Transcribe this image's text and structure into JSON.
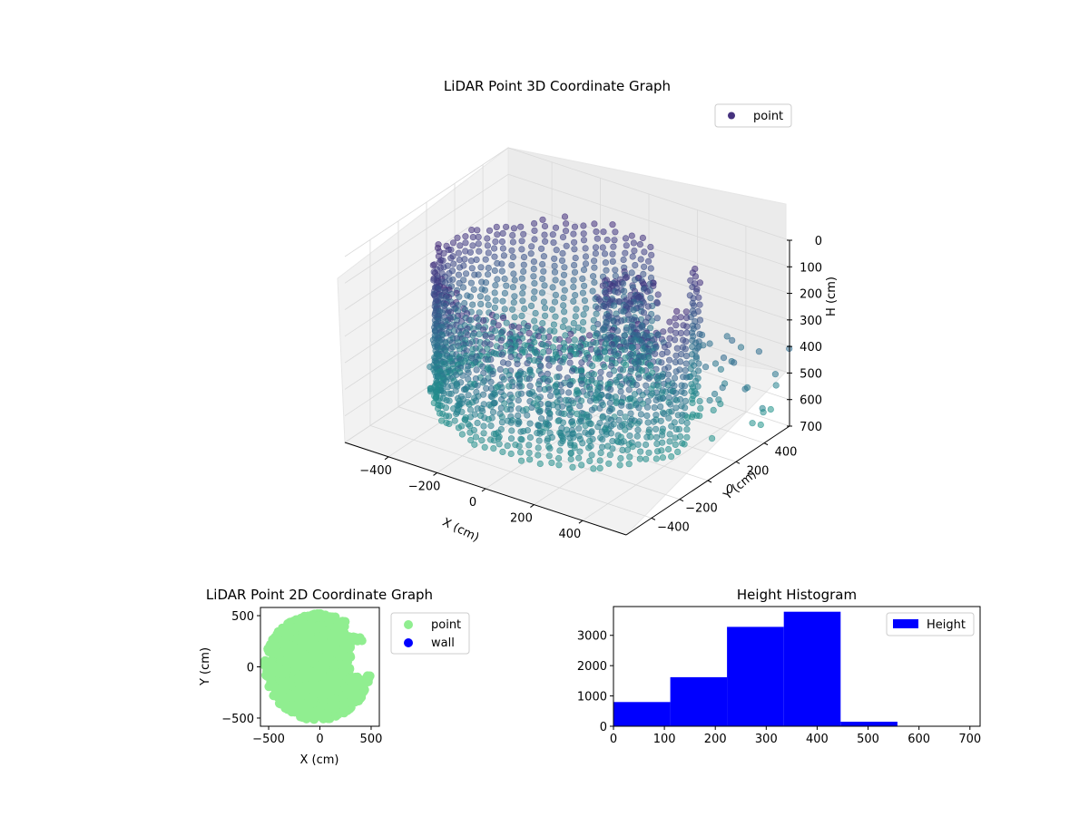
{
  "chart_data": [
    {
      "type": "scatter",
      "projection": "3d",
      "title": "LiDAR Point 3D Coordinate Graph",
      "xlabel": "X (cm)",
      "ylabel": "Y (cm)",
      "zlabel": "H (cm)",
      "xticks": [
        "−400",
        "−200",
        "0",
        "200",
        "400"
      ],
      "yticks": [
        "−400",
        "−200",
        "0",
        "200",
        "400"
      ],
      "zticks": [
        "0",
        "100",
        "200",
        "300",
        "400",
        "500",
        "600",
        "700"
      ],
      "xlim": [
        -580,
        580
      ],
      "ylim": [
        -580,
        580
      ],
      "zlim": [
        0,
        700
      ],
      "zaxis_inverted": true,
      "legend": {
        "location": "upper-right",
        "entries": [
          "point"
        ]
      },
      "colormap": "viridis (height-mapped, alpha 0.5)",
      "series": [
        {
          "name": "point",
          "color": "#46327e",
          "shape": "ring of vertical columns, radius ~480 cm, open toward +X/+Y; dense cluster near x≈150,y≈100; scattered returns beyond ring at x≈550"
        }
      ],
      "grid": true
    },
    {
      "type": "scatter",
      "title": "LiDAR Point 2D Coordinate Graph",
      "xlabel": "X (cm)",
      "ylabel": "Y (cm)",
      "xticks": [
        "−500",
        "0",
        "500"
      ],
      "yticks": [
        "−500",
        "0",
        "500"
      ],
      "xlim": [
        -580,
        580
      ],
      "ylim": [
        -580,
        580
      ],
      "legend": {
        "location": "outside-right",
        "entries": [
          "point",
          "wall"
        ]
      },
      "series": [
        {
          "name": "point",
          "color": "#90ee90"
        },
        {
          "name": "wall",
          "color": "#0000ff"
        }
      ],
      "grid": false
    },
    {
      "type": "bar",
      "subtype": "histogram",
      "title": "Height Histogram",
      "xticks": [
        "0",
        "100",
        "200",
        "300",
        "400",
        "500",
        "600",
        "700"
      ],
      "yticks": [
        "0",
        "1000",
        "2000",
        "3000"
      ],
      "xlim": [
        0,
        720
      ],
      "ylim": [
        0,
        3950
      ],
      "bin_edges": [
        0,
        111.5,
        223,
        334.5,
        446,
        557.5,
        669
      ],
      "values": [
        800,
        1620,
        3280,
        3780,
        150,
        0
      ],
      "legend": {
        "location": "upper-right",
        "entries": [
          "Height"
        ]
      },
      "series": [
        {
          "name": "Height",
          "color": "#0000ff"
        }
      ],
      "grid": false
    }
  ]
}
